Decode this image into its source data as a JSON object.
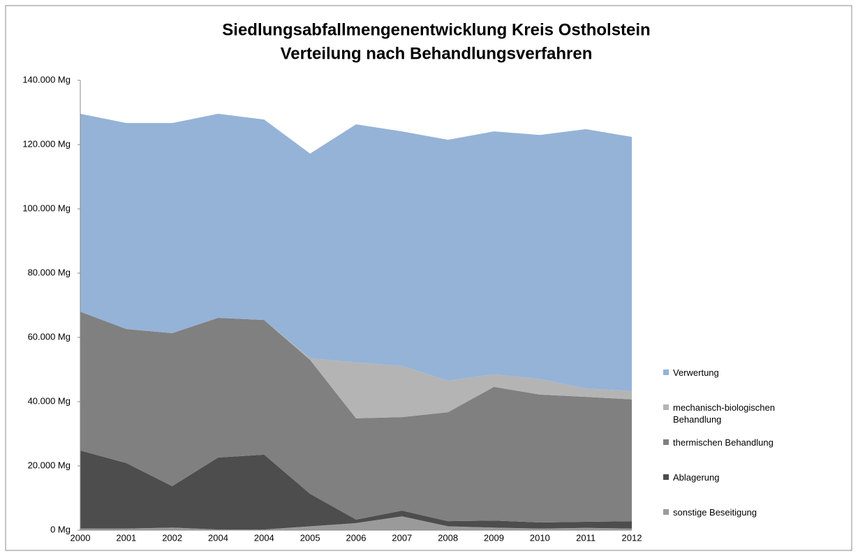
{
  "chart_data": {
    "type": "stacked_area",
    "title": "Siedlungsabfallmengenentwicklung  Kreis Ostholstein",
    "subtitle": "Verteilung nach Behandlungsverfahren",
    "categories": [
      "2000",
      "2001",
      "2002",
      "2004",
      "2004",
      "2005",
      "2006",
      "2007",
      "2008",
      "2009",
      "2010",
      "2011",
      "2012"
    ],
    "series": [
      {
        "name": "sonstige Beseitigung",
        "color": "#9a9a9a",
        "values": [
          500,
          500,
          800,
          200,
          200,
          1200,
          2200,
          4300,
          1200,
          800,
          500,
          700,
          500
        ]
      },
      {
        "name": "Ablagerung",
        "color": "#4d4d4d",
        "values": [
          24300,
          20400,
          12900,
          22400,
          23300,
          10100,
          1100,
          1800,
          1600,
          2200,
          1900,
          1900,
          2300
        ]
      },
      {
        "name": "thermischen Behandlung",
        "color": "#808080",
        "values": [
          43200,
          41700,
          47600,
          43500,
          41900,
          41700,
          31500,
          29100,
          33900,
          41600,
          39800,
          38900,
          37900
        ]
      },
      {
        "name": "mechanisch-biologischen Behandlung",
        "color": "#b4b4b4",
        "values": [
          0,
          0,
          0,
          0,
          0,
          500,
          17400,
          15900,
          9800,
          3900,
          4800,
          2600,
          2600
        ]
      },
      {
        "name": "Verwertung",
        "color": "#95b3d7",
        "values": [
          61600,
          64100,
          65400,
          63500,
          62400,
          63700,
          74100,
          73000,
          75000,
          75600,
          76000,
          80700,
          79100
        ]
      }
    ],
    "ylim": [
      0,
      140000
    ],
    "yticks": [
      {
        "value": 0,
        "label": "0 Mg"
      },
      {
        "value": 20000,
        "label": "20.000 Mg"
      },
      {
        "value": 40000,
        "label": "40.000 Mg"
      },
      {
        "value": 60000,
        "label": "60.000 Mg"
      },
      {
        "value": 80000,
        "label": "80.000 Mg"
      },
      {
        "value": 100000,
        "label": "100.000 Mg"
      },
      {
        "value": 120000,
        "label": "120.000 Mg"
      },
      {
        "value": 140000,
        "label": "140.000 Mg"
      }
    ],
    "legend": "right"
  }
}
